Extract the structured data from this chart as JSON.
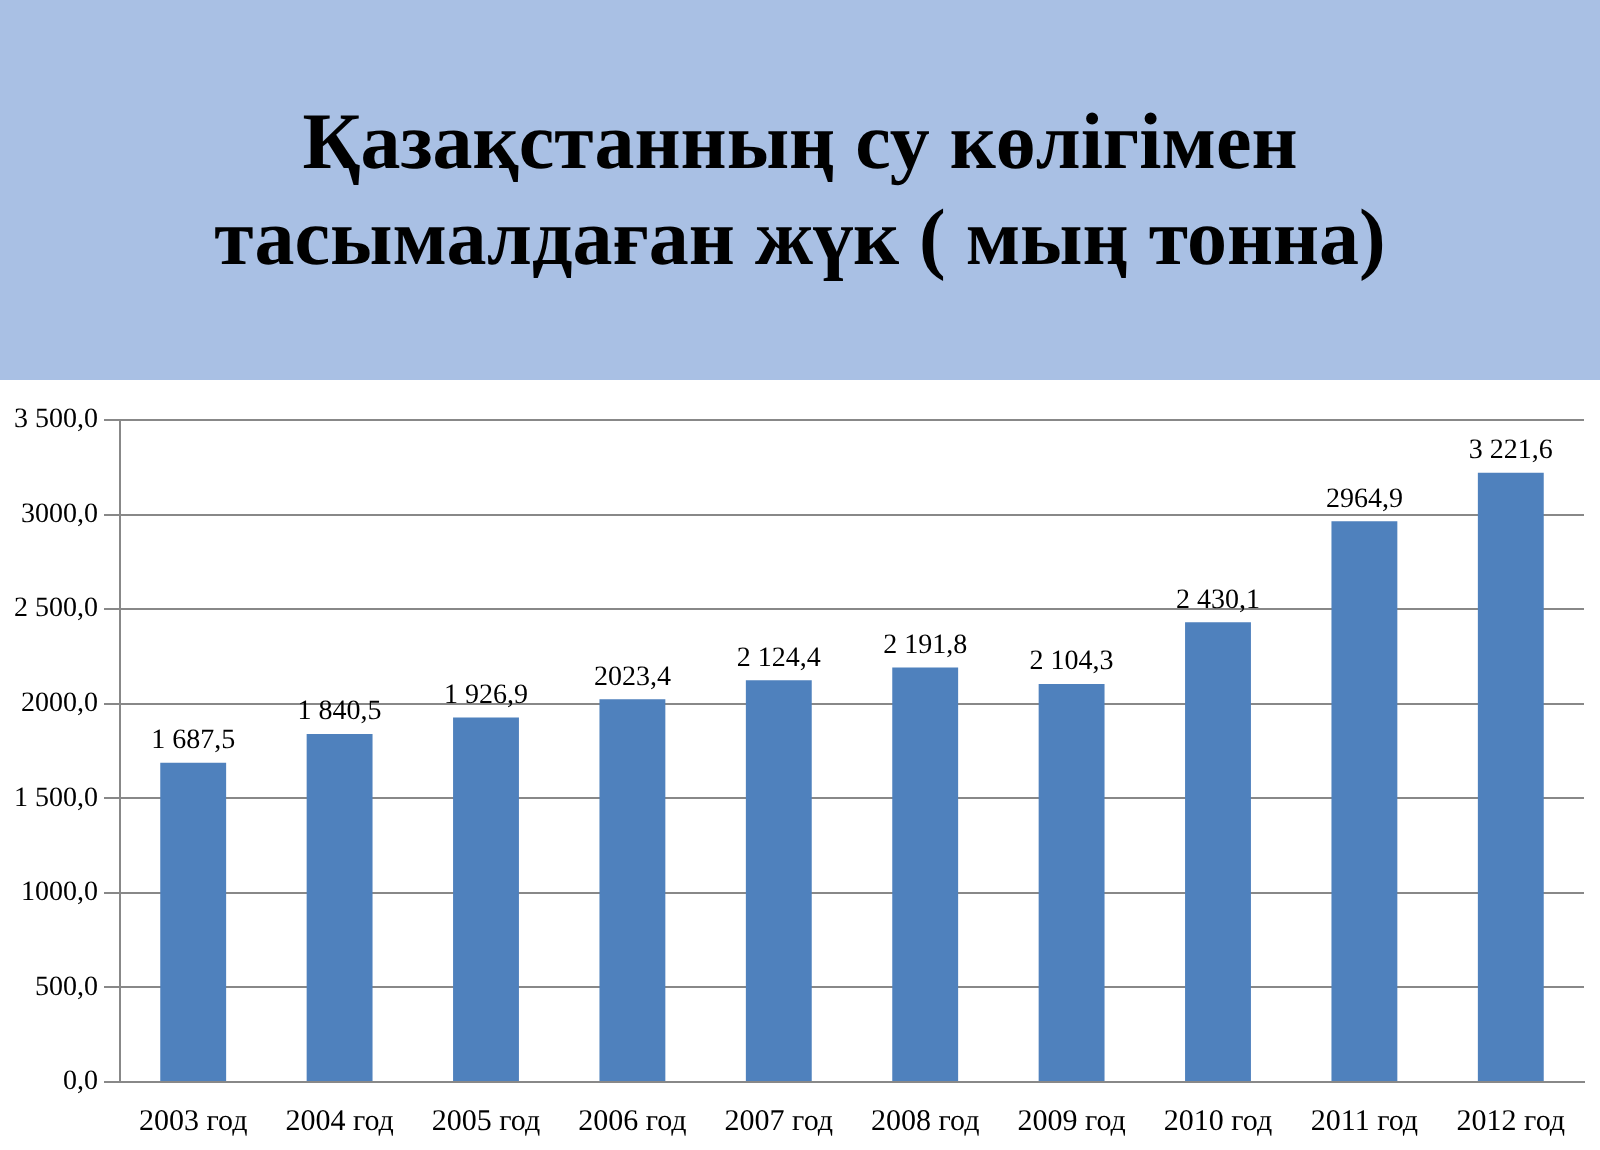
{
  "chart_data": {
    "type": "bar",
    "title": "Қазақстанның су көлігімен тасымалдаған жүк ( мың тонна)",
    "categories": [
      "2003 год",
      "2004 год",
      "2005 год",
      "2006 год",
      "2007 год",
      "2008 год",
      "2009 год",
      "2010 год",
      "2011 год",
      "2012 год"
    ],
    "values": [
      1687.5,
      1840.5,
      1926.9,
      2023.4,
      2124.4,
      2191.8,
      2104.3,
      2430.1,
      2964.9,
      3221.6
    ],
    "value_labels": [
      "1 687,5",
      "1 840,5",
      "1 926,9",
      "2023,4",
      "2 124,4",
      "2 191,8",
      "2 104,3",
      "2 430,1",
      "2964,9",
      "3 221,6"
    ],
    "color": "#4f81bd",
    "ylim": [
      0,
      3500
    ],
    "yticks": [
      {
        "value": 0,
        "label": "0,0"
      },
      {
        "value": 500,
        "label": "500,0"
      },
      {
        "value": 1000,
        "label": "1000,0"
      },
      {
        "value": 1500,
        "label": "1 500,0"
      },
      {
        "value": 2000,
        "label": "2000,0"
      },
      {
        "value": 2500,
        "label": "2 500,0"
      },
      {
        "value": 3000,
        "label": "3000,0"
      },
      {
        "value": 3500,
        "label": "3 500,0"
      }
    ],
    "grid": "y"
  }
}
